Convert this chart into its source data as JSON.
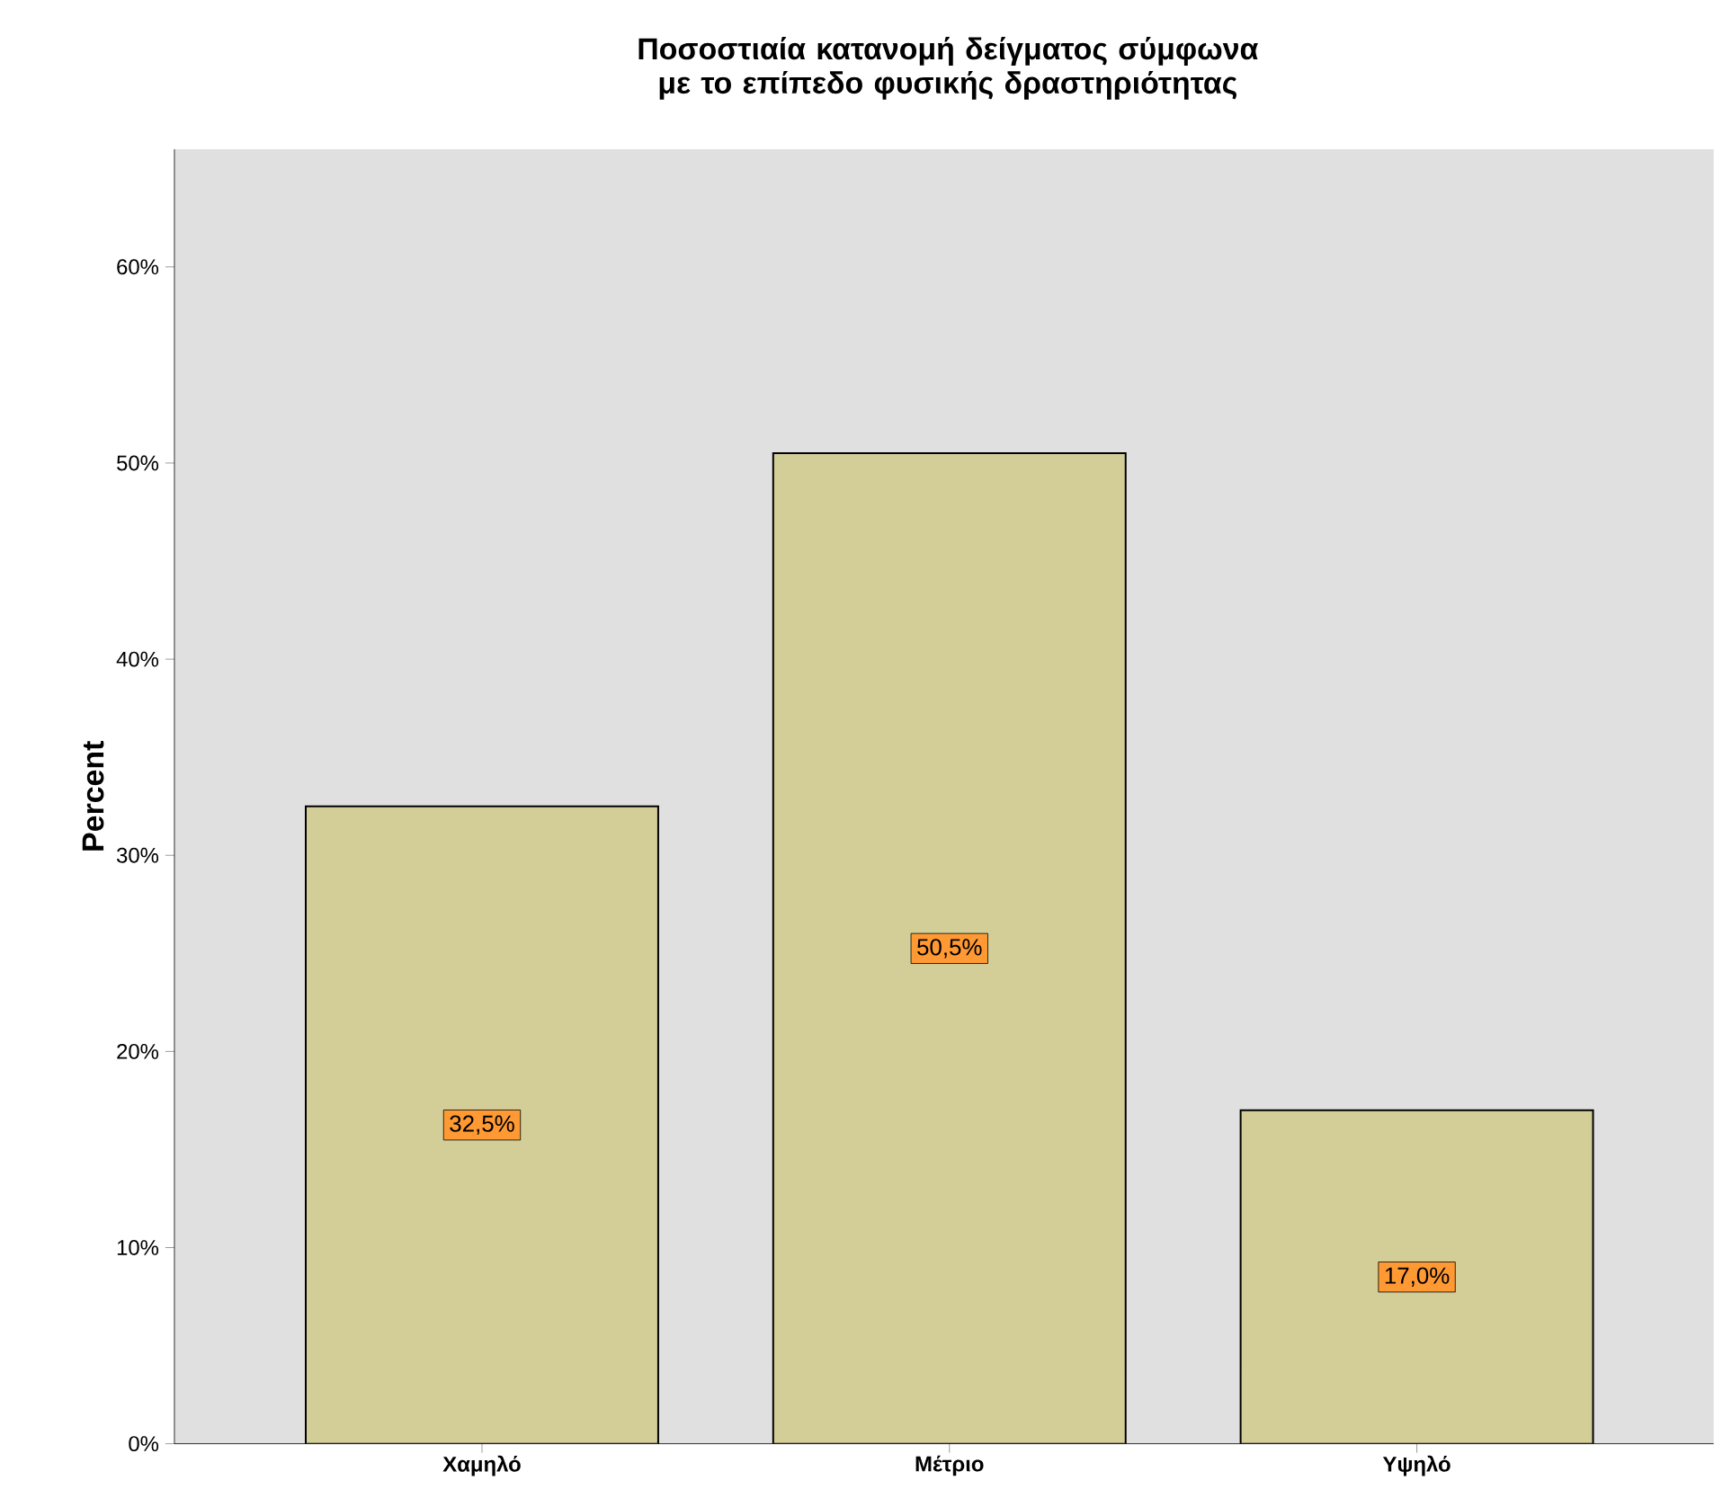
{
  "chart_data": {
    "type": "bar",
    "title": "Ποσοστιαία κατανομή δείγματος σύμφωνα με το επίπεδο φυσικής δραστηριότητας",
    "ylabel": "Percent",
    "categories": [
      "Χαμηλό",
      "Μέτριο",
      "Υψηλό"
    ],
    "values": [
      32.5,
      50.5,
      17.0
    ],
    "value_labels": [
      "32,5%",
      "50,5%",
      "17,0%"
    ],
    "color": "#d3ce97",
    "ylim": [
      0,
      66
    ],
    "yticks": [
      {
        "value": 0,
        "label": "0%"
      },
      {
        "value": 10,
        "label": "10%"
      },
      {
        "value": 20,
        "label": "20%"
      },
      {
        "value": 30,
        "label": "30%"
      },
      {
        "value": 40,
        "label": "40%"
      },
      {
        "value": 50,
        "label": "50%"
      },
      {
        "value": 60,
        "label": "60%"
      }
    ],
    "grid": false
  }
}
